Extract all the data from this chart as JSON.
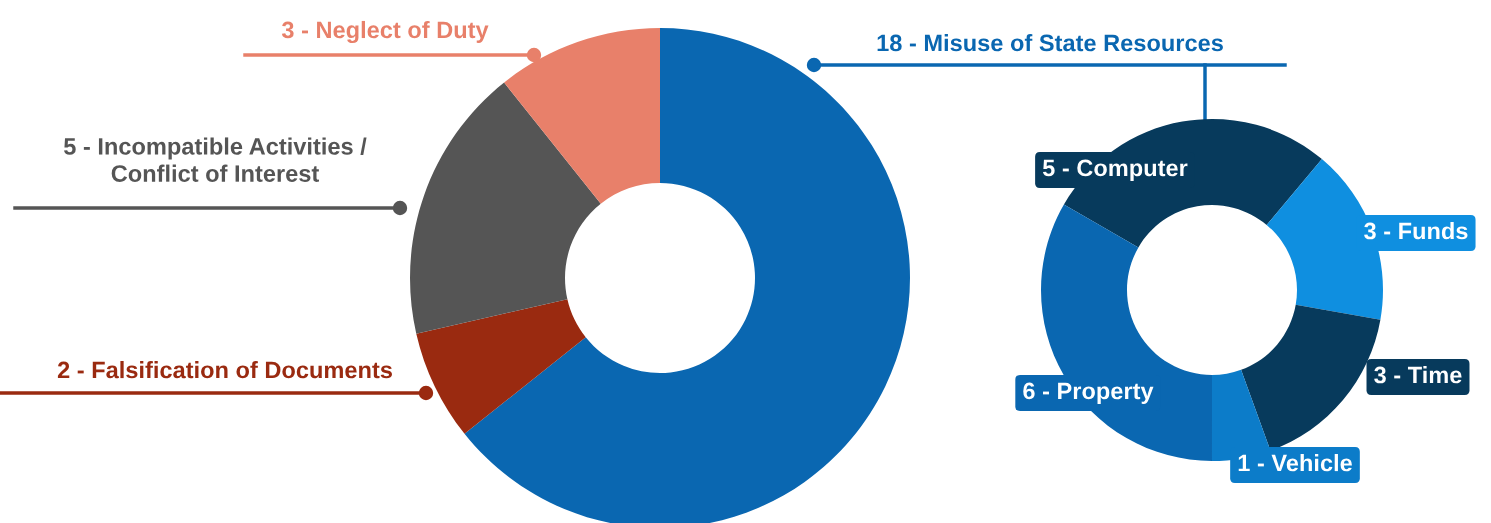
{
  "chart_data": [
    {
      "type": "donut",
      "categories": [
        "18 - Misuse of State Resources",
        "2 - Falsification of Documents",
        "5 - Incompatible Activities /\nConflict of Interest",
        "3 - Neglect of Duty"
      ],
      "values": [
        18,
        2,
        5,
        3
      ],
      "colors": [
        "#0a67b1",
        "#9a2a10",
        "#555555",
        "#e8806a"
      ],
      "legend": false
    },
    {
      "type": "donut",
      "categories": [
        "5 - Computer",
        "3 - Funds",
        "3 - Time",
        "1 - Vehicle",
        "6 - Property"
      ],
      "values": [
        5,
        3,
        3,
        1,
        6
      ],
      "colors": [
        "#073a5c",
        "#0f8fe0",
        "#073a5c",
        "#0c7cc9",
        "#0a67b1"
      ],
      "legend": false
    }
  ]
}
